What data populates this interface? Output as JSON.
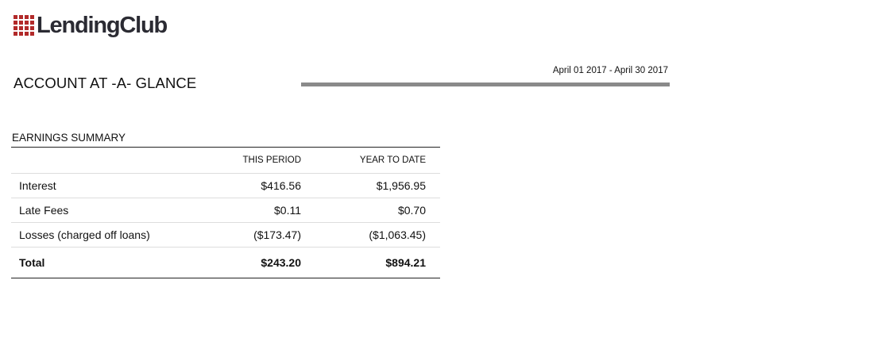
{
  "header": {
    "logo_text": "LendingClub",
    "logo_icon": "lendingclub-grid-logo-icon",
    "brand_color": "#b22a2a"
  },
  "statement": {
    "title": "ACCOUNT AT -A- GLANCE",
    "period": "April 01 2017 - April 30 2017"
  },
  "earnings_summary": {
    "title": "EARNINGS SUMMARY",
    "columns": [
      "",
      "THIS PERIOD",
      "YEAR TO DATE"
    ],
    "rows": [
      {
        "label": "Interest",
        "this_period": "$416.56",
        "ytd": "$1,956.95"
      },
      {
        "label": "Late Fees",
        "this_period": "$0.11",
        "ytd": "$0.70"
      },
      {
        "label": "Losses (charged off loans)",
        "this_period": "($173.47)",
        "ytd": "($1,063.45)"
      }
    ],
    "total": {
      "label": "Total",
      "this_period": "$243.20",
      "ytd": "$894.21"
    }
  }
}
